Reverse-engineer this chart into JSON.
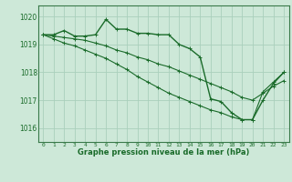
{
  "xlabel": "Graphe pression niveau de la mer (hPa)",
  "background_color": "#cde8d8",
  "grid_color": "#aacfbc",
  "line_color": "#1a6b2a",
  "spine_color": "#3a7a4a",
  "x_ticks": [
    0,
    1,
    2,
    3,
    4,
    5,
    6,
    7,
    8,
    9,
    10,
    11,
    12,
    13,
    14,
    15,
    16,
    17,
    18,
    19,
    20,
    21,
    22,
    23
  ],
  "ylim": [
    1015.5,
    1020.4
  ],
  "yticks": [
    1016,
    1017,
    1018,
    1019,
    1020
  ],
  "series": [
    [
      1019.35,
      1019.35,
      1019.5,
      1019.3,
      1019.3,
      1019.35,
      1019.9,
      1019.55,
      1019.55,
      1019.4,
      1019.4,
      1019.35,
      1019.35,
      1019.0,
      1018.85,
      1018.55,
      1017.05,
      1016.95,
      1016.55,
      1016.3,
      1016.3,
      1017.0,
      1017.6,
      1018.0
    ],
    [
      1019.35,
      1019.3,
      1019.25,
      1019.2,
      1019.15,
      1019.05,
      1018.95,
      1018.8,
      1018.7,
      1018.55,
      1018.45,
      1018.3,
      1018.2,
      1018.05,
      1017.9,
      1017.75,
      1017.6,
      1017.45,
      1017.3,
      1017.1,
      1017.0,
      1017.25,
      1017.5,
      1017.7
    ],
    [
      1019.35,
      1019.2,
      1019.05,
      1018.95,
      1018.8,
      1018.65,
      1018.5,
      1018.3,
      1018.1,
      1017.85,
      1017.65,
      1017.45,
      1017.25,
      1017.1,
      1016.95,
      1016.8,
      1016.65,
      1016.55,
      1016.4,
      1016.3,
      1016.3,
      1017.3,
      1017.65,
      1018.0
    ]
  ]
}
